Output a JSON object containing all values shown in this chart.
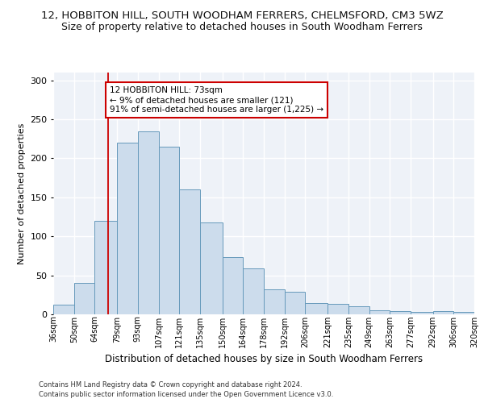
{
  "title1": "12, HOBBITON HILL, SOUTH WOODHAM FERRERS, CHELMSFORD, CM3 5WZ",
  "title2": "Size of property relative to detached houses in South Woodham Ferrers",
  "xlabel": "Distribution of detached houses by size in South Woodham Ferrers",
  "ylabel": "Number of detached properties",
  "footer1": "Contains HM Land Registry data © Crown copyright and database right 2024.",
  "footer2": "Contains public sector information licensed under the Open Government Licence v3.0.",
  "bin_labels": [
    "36sqm",
    "50sqm",
    "64sqm",
    "79sqm",
    "93sqm",
    "107sqm",
    "121sqm",
    "135sqm",
    "150sqm",
    "164sqm",
    "178sqm",
    "192sqm",
    "206sqm",
    "221sqm",
    "235sqm",
    "249sqm",
    "263sqm",
    "277sqm",
    "292sqm",
    "306sqm",
    "320sqm"
  ],
  "bar_heights": [
    12,
    40,
    120,
    220,
    235,
    215,
    160,
    118,
    73,
    59,
    32,
    29,
    14,
    13,
    10,
    5,
    4,
    3,
    4,
    3
  ],
  "bar_color": "#ccdcec",
  "bar_edge_color": "#6699bb",
  "vline_x": 73,
  "vline_color": "#cc0000",
  "annotation_line1": "12 HOBBITON HILL: 73sqm",
  "annotation_line2": "← 9% of detached houses are smaller (121)",
  "annotation_line3": "91% of semi-detached houses are larger (1,225) →",
  "annotation_box_color": "#ffffff",
  "annotation_box_edge": "#cc0000",
  "ylim": [
    0,
    310
  ],
  "yticks": [
    0,
    50,
    100,
    150,
    200,
    250,
    300
  ],
  "background_color": "#ffffff",
  "plot_bg_color": "#eef2f8",
  "grid_color": "#ffffff",
  "title1_fontsize": 9.5,
  "title2_fontsize": 9,
  "xlabel_fontsize": 8.5,
  "ylabel_fontsize": 8,
  "footer_fontsize": 6,
  "bin_edges": [
    36,
    50,
    64,
    79,
    93,
    107,
    121,
    135,
    150,
    164,
    178,
    192,
    206,
    221,
    235,
    249,
    263,
    277,
    292,
    306,
    320
  ]
}
